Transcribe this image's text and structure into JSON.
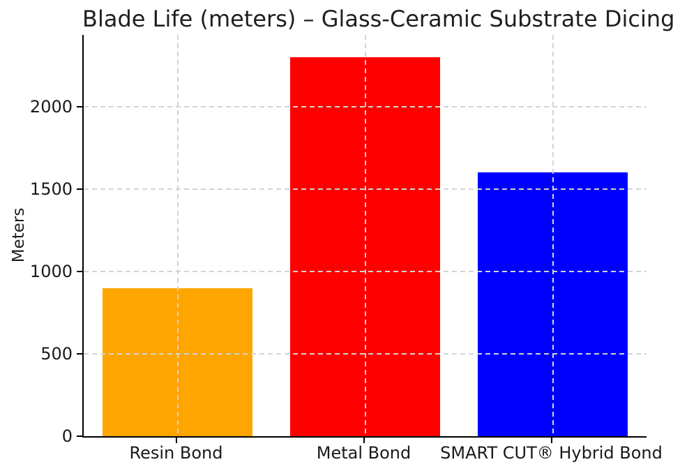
{
  "chart_data": {
    "type": "bar",
    "title": "Blade Life (meters) – Glass-Ceramic Substrate Dicing",
    "xlabel": "",
    "ylabel": "Meters",
    "categories": [
      "Resin Bond",
      "Metal Bond",
      "SMART CUT® Hybrid Bond"
    ],
    "values": [
      900,
      2300,
      1600
    ],
    "bar_colors": [
      "#FFA500",
      "#FF0000",
      "#0000FF"
    ],
    "ylim": [
      0,
      2436
    ],
    "yticks": [
      0,
      500,
      1000,
      1500,
      2000
    ],
    "grid": true,
    "grid_style": "dashed",
    "grid_color": "#d3d3d3",
    "legend_position": "none",
    "axis_color": "#000000",
    "text_color": "#1a1a1a",
    "background_color": "#ffffff"
  }
}
